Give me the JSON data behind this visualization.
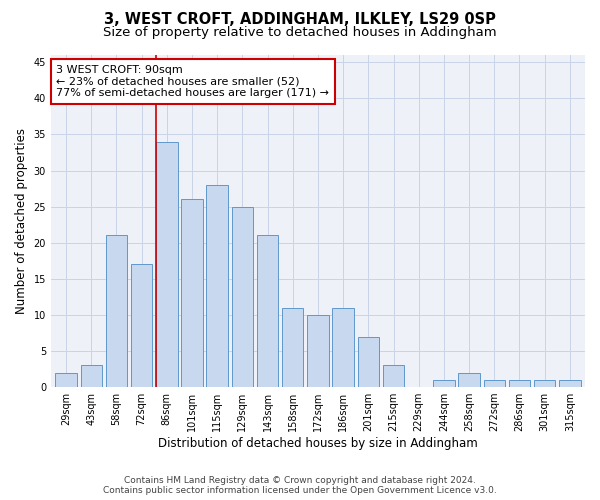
{
  "title": "3, WEST CROFT, ADDINGHAM, ILKLEY, LS29 0SP",
  "subtitle": "Size of property relative to detached houses in Addingham",
  "xlabel": "Distribution of detached houses by size in Addingham",
  "ylabel": "Number of detached properties",
  "categories": [
    "29sqm",
    "43sqm",
    "58sqm",
    "72sqm",
    "86sqm",
    "101sqm",
    "115sqm",
    "129sqm",
    "143sqm",
    "158sqm",
    "172sqm",
    "186sqm",
    "201sqm",
    "215sqm",
    "229sqm",
    "244sqm",
    "258sqm",
    "272sqm",
    "286sqm",
    "301sqm",
    "315sqm"
  ],
  "values": [
    2,
    3,
    21,
    17,
    34,
    26,
    28,
    25,
    21,
    11,
    10,
    11,
    7,
    3,
    0,
    1,
    2,
    1,
    1,
    1,
    1
  ],
  "bar_color": "#c8d9ef",
  "bar_edge_color": "#6098cc",
  "grid_color": "#c8d4e8",
  "background_color": "#eef2f8",
  "annotation_line1": "3 WEST CROFT: 90sqm",
  "annotation_line2": "← 23% of detached houses are smaller (52)",
  "annotation_line3": "77% of semi-detached houses are larger (171) →",
  "annotation_box_color": "#ffffff",
  "annotation_box_edge_color": "#cc0000",
  "vline_color": "#cc0000",
  "ylim": [
    0,
    46
  ],
  "yticks": [
    0,
    5,
    10,
    15,
    20,
    25,
    30,
    35,
    40,
    45
  ],
  "footer_line1": "Contains HM Land Registry data © Crown copyright and database right 2024.",
  "footer_line2": "Contains public sector information licensed under the Open Government Licence v3.0.",
  "title_fontsize": 10.5,
  "subtitle_fontsize": 9.5,
  "xlabel_fontsize": 8.5,
  "ylabel_fontsize": 8.5,
  "tick_fontsize": 7,
  "annotation_fontsize": 8,
  "footer_fontsize": 6.5
}
